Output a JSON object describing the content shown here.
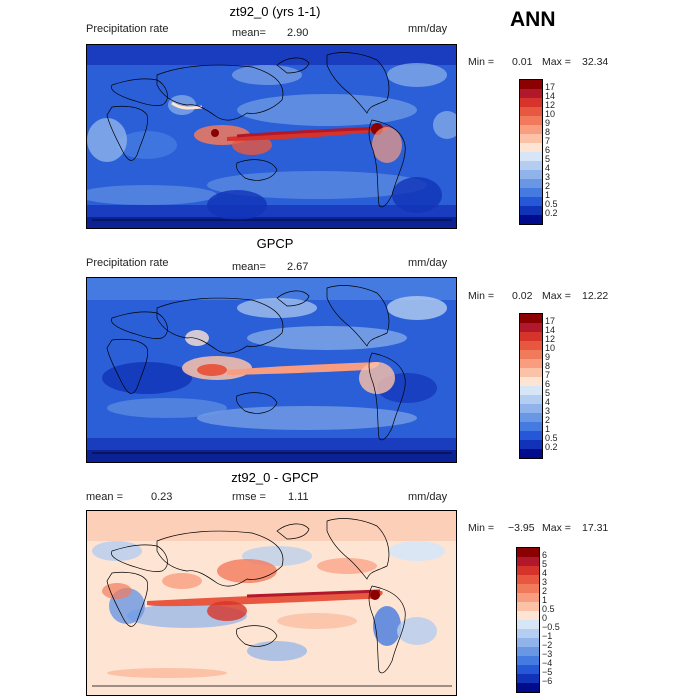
{
  "ann_label": "ANN",
  "panels": [
    {
      "title": "zt92_0 (yrs 1-1)",
      "left_label": "Precipitation rate",
      "mean_label": "mean=",
      "mean_value": "2.90",
      "units": "mm/day",
      "min_label": "Min =",
      "min_value": "0.01",
      "max_label": "Max =",
      "max_value": "32.34"
    },
    {
      "title": "GPCP",
      "left_label": "Precipitation rate",
      "mean_label": "mean=",
      "mean_value": "2.67",
      "units": "mm/day",
      "min_label": "Min =",
      "min_value": "0.02",
      "max_label": "Max =",
      "max_value": "12.22"
    },
    {
      "title": "zt92_0 - GPCP",
      "left_label": "mean =",
      "left_value": "0.23",
      "mean_label": "rmse =",
      "mean_value": "1.11",
      "units": "mm/day",
      "min_label": "Min =",
      "min_value": "−3.95",
      "max_label": "Max =",
      "max_value": "17.31"
    }
  ],
  "colorbars": {
    "precip": {
      "labels": [
        "17",
        "14",
        "12",
        "10",
        "9",
        "8",
        "7",
        "6",
        "5",
        "4",
        "3",
        "2",
        "1",
        "0.5",
        "0.2"
      ],
      "colors": [
        "#8b0000",
        "#b2182b",
        "#d6342b",
        "#e8573f",
        "#f27a5c",
        "#f99d80",
        "#fcc2a8",
        "#fde4d3",
        "#d7e6f7",
        "#b4cdf0",
        "#8fb3ea",
        "#6a97e3",
        "#457be0",
        "#2557d6",
        "#1133b8",
        "#000c8c"
      ]
    },
    "diff": {
      "labels": [
        "6",
        "5",
        "4",
        "3",
        "2",
        "1",
        "0.5",
        "0",
        "−0.5",
        "−1",
        "−2",
        "−3",
        "−4",
        "−5",
        "−6"
      ],
      "colors": [
        "#8b0000",
        "#b2182b",
        "#d6342b",
        "#e8573f",
        "#f27a5c",
        "#f99d80",
        "#fcc2a8",
        "#fde4d3",
        "#d7e6f7",
        "#b4cdf0",
        "#8fb3ea",
        "#6a97e3",
        "#457be0",
        "#2557d6",
        "#1133b8",
        "#000c8c"
      ]
    }
  },
  "chart_data": [
    {
      "type": "heatmap",
      "title": "zt92_0 (yrs 1-1)",
      "variable": "Precipitation rate",
      "units": "mm/day",
      "mean": 2.9,
      "min": 0.01,
      "max": 32.34,
      "colorbar_levels": [
        0.2,
        0.5,
        1,
        2,
        3,
        4,
        5,
        6,
        7,
        8,
        9,
        10,
        12,
        14,
        17
      ]
    },
    {
      "type": "heatmap",
      "title": "GPCP",
      "variable": "Precipitation rate",
      "units": "mm/day",
      "mean": 2.67,
      "min": 0.02,
      "max": 12.22,
      "colorbar_levels": [
        0.2,
        0.5,
        1,
        2,
        3,
        4,
        5,
        6,
        7,
        8,
        9,
        10,
        12,
        14,
        17
      ]
    },
    {
      "type": "heatmap",
      "title": "zt92_0 - GPCP",
      "units": "mm/day",
      "mean": 0.23,
      "rmse": 1.11,
      "min": -3.95,
      "max": 17.31,
      "colorbar_levels": [
        -6,
        -5,
        -4,
        -3,
        -2,
        -1,
        -0.5,
        0,
        0.5,
        1,
        2,
        3,
        4,
        5,
        6
      ]
    }
  ]
}
